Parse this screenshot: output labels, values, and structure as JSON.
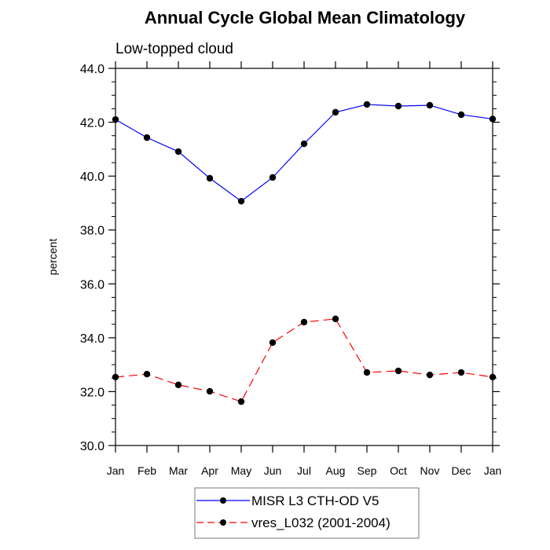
{
  "chart_data": {
    "type": "line",
    "title": "Annual Cycle Global Mean Climatology",
    "subtitle": "Low-topped cloud",
    "xlabel": "",
    "ylabel": "percent",
    "categories": [
      "Jan",
      "Feb",
      "Mar",
      "Apr",
      "May",
      "Jun",
      "Jul",
      "Aug",
      "Sep",
      "Oct",
      "Nov",
      "Dec",
      "Jan"
    ],
    "ylim": [
      30.0,
      44.0
    ],
    "yticks": [
      30.0,
      32.0,
      34.0,
      36.0,
      38.0,
      40.0,
      42.0,
      44.0
    ],
    "ytick_labels": [
      "30.0",
      "32.0",
      "34.0",
      "36.0",
      "38.0",
      "40.0",
      "42.0",
      "44.0"
    ],
    "yminor_step": 0.5,
    "grid": false,
    "legend_position": "bottom-center",
    "series": [
      {
        "name": "MISR L3 CTH-OD V5",
        "color": "#0000ff",
        "line_style": "solid",
        "marker": "filled-circle",
        "marker_color": "#000000",
        "values": [
          42.1,
          41.43,
          40.91,
          39.92,
          39.07,
          39.95,
          41.2,
          42.37,
          42.66,
          42.6,
          42.63,
          42.28,
          42.12
        ]
      },
      {
        "name": "vres_L032 (2001-2004)",
        "color": "#ff0000",
        "line_style": "dashed",
        "marker": "filled-circle",
        "marker_color": "#000000",
        "values": [
          32.54,
          32.65,
          32.25,
          32.01,
          31.63,
          33.82,
          34.58,
          34.7,
          32.71,
          32.77,
          32.62,
          32.71,
          32.54
        ]
      }
    ]
  }
}
